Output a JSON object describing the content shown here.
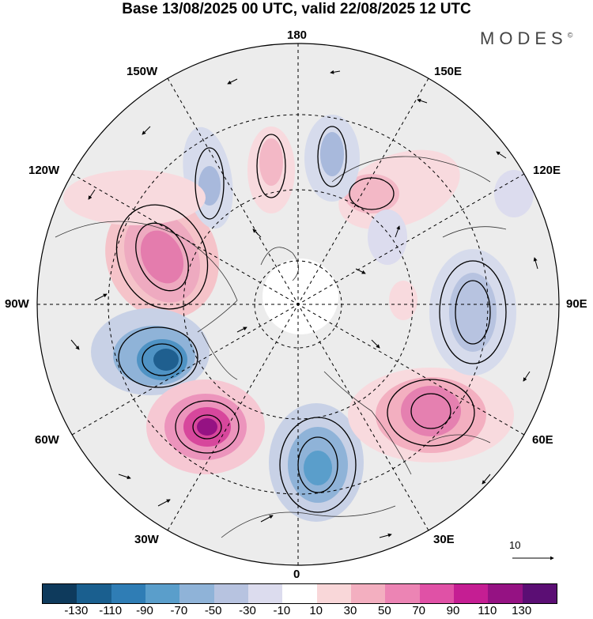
{
  "title": "Base 13/08/2025 00 UTC, valid 22/08/2025 12 UTC",
  "brand": "MODES",
  "brand_mark": "©",
  "longitude_labels": {
    "top": "180",
    "bottom": "0",
    "left": "90W",
    "right": "90E",
    "upper_left_1": "150W",
    "upper_left_2": "120W",
    "lower_left_1": "60W",
    "lower_left_2": "30W",
    "upper_right_1": "150E",
    "upper_right_2": "120E",
    "lower_right_1": "60E",
    "lower_right_2": "30E"
  },
  "reference_vector": "10",
  "colorbar": {
    "colors": [
      "#0e3a5c",
      "#1a5f8f",
      "#2f7db5",
      "#5a9ecb",
      "#8fb3d8",
      "#b7c3e0",
      "#dcdcee",
      "#ffffff",
      "#f9d7d9",
      "#f3afc0",
      "#ec84b4",
      "#e051a6",
      "#c51e93",
      "#951283",
      "#5b0e74"
    ],
    "labels": [
      "-130",
      "-110",
      "-90",
      "-70",
      "-50",
      "-30",
      "-10",
      "10",
      "30",
      "50",
      "70",
      "90",
      "110",
      "130"
    ]
  }
}
